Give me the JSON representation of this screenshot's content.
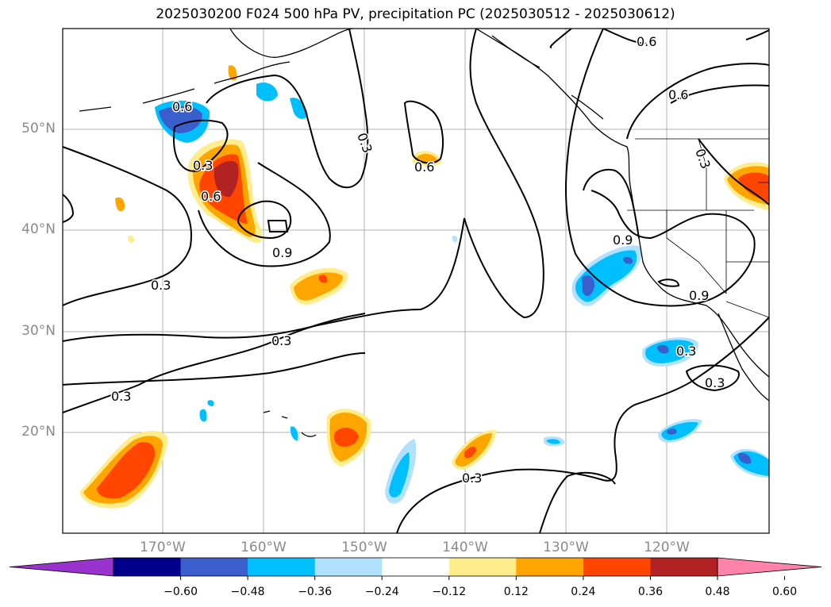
{
  "title": "2025030200 F024 500 hPa PV, precipitation PC (2025030512 - 2025030612)",
  "map": {
    "lat_labels": [
      "50°N",
      "40°N",
      "30°N",
      "20°N"
    ],
    "lon_labels": [
      "170°W",
      "160°W",
      "150°W",
      "140°W",
      "130°W",
      "120°W"
    ],
    "contour_labels": [
      "0.3",
      "0.6",
      "0.9"
    ]
  },
  "colorbar": {
    "ticks": [
      "−0.60",
      "−0.48",
      "−0.36",
      "−0.24",
      "−0.12",
      "0.12",
      "0.24",
      "0.36",
      "0.48",
      "0.60"
    ],
    "colors": [
      "#9a32cd",
      "#00008b",
      "#3a5fcd",
      "#00bfff",
      "#b0e2ff",
      "#ffffff",
      "#ffec8b",
      "#ffa500",
      "#ff4500",
      "#b22222",
      "#ff82ab"
    ]
  }
}
